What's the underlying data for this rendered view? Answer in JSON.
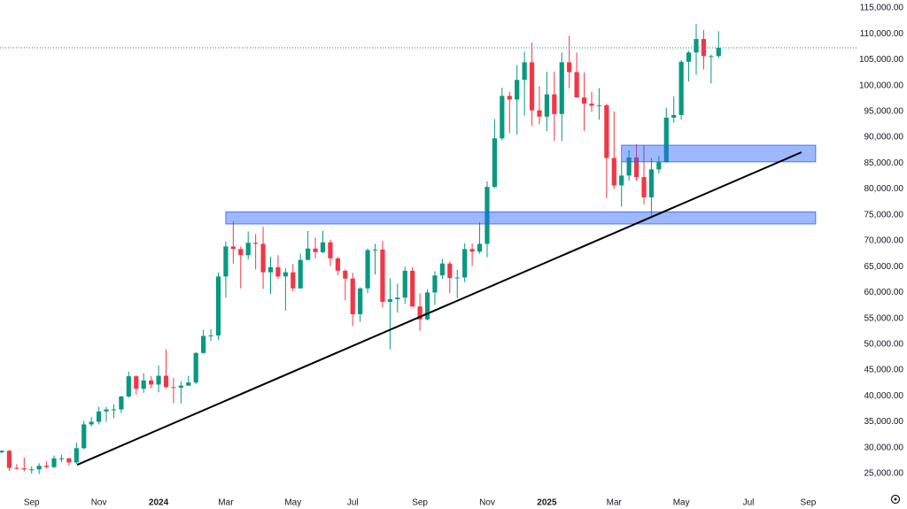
{
  "chart_data": {
    "type": "candlestick",
    "categories": [
      null,
      null,
      null,
      null,
      "Sep",
      null,
      null,
      null,
      null,
      null,
      null,
      null,
      null,
      "Nov",
      null,
      null,
      null,
      null,
      null,
      null,
      null,
      "2024",
      null,
      null,
      null,
      null,
      null,
      null,
      null,
      null,
      "Mar",
      null,
      null,
      null,
      null,
      null,
      null,
      null,
      null,
      "May",
      null,
      null,
      null,
      null,
      null,
      null,
      null,
      "Jul",
      null,
      null,
      null,
      null,
      null,
      null,
      null,
      null,
      "Sep",
      null,
      null,
      null,
      null,
      null,
      null,
      null,
      null,
      "Nov",
      null,
      null,
      null,
      null,
      null,
      null,
      null,
      "2025",
      null,
      null,
      null,
      null,
      null,
      null,
      null,
      null,
      "Mar",
      null,
      null,
      null,
      null,
      null,
      null,
      null,
      null,
      "May",
      null,
      null,
      null,
      null,
      null,
      null,
      null,
      null,
      "Jul",
      null,
      null,
      null,
      null,
      null,
      null,
      null,
      "Sep",
      null,
      null,
      null,
      null,
      null,
      null
    ],
    "open": [
      29100,
      29400,
      26100,
      26000,
      25800,
      25800,
      26500,
      26250,
      27950,
      27950,
      27150,
      29900,
      34500,
      35000,
      37000,
      37400,
      37400,
      39900,
      43800,
      41400,
      43000,
      42200,
      43900,
      41700,
      41600,
      42000,
      42600,
      48300,
      51600,
      51700,
      63100,
      68900,
      68400,
      67200,
      69600,
      69400,
      63900,
      64900,
      63100,
      63900,
      60800,
      66300,
      68500,
      67800,
      69700,
      66600,
      64200,
      62700,
      55800,
      60800,
      68200,
      68300,
      58200,
      58700,
      59000,
      64200,
      57300,
      54800,
      60000,
      63300,
      65600,
      62800,
      62900,
      68400,
      67900,
      69400,
      80400,
      89800,
      98000,
      97300,
      101100,
      104500,
      95200,
      94000,
      98300,
      94500,
      104500,
      102600,
      97700,
      96500,
      96100,
      96200,
      86000,
      80700,
      82600,
      86100,
      82300,
      78400,
      83800,
      85200,
      93800,
      94300,
      104600,
      106400,
      109000,
      105700,
      105700,
      null,
      null,
      null,
      null,
      null,
      null,
      null,
      null,
      null,
      null,
      null,
      null,
      null,
      null,
      null,
      null,
      null,
      null
    ],
    "high": [
      29500,
      29600,
      26800,
      28100,
      26400,
      27000,
      27400,
      28500,
      28600,
      28000,
      31000,
      35200,
      35900,
      37900,
      37900,
      38400,
      40000,
      44700,
      44000,
      44400,
      43800,
      45900,
      49000,
      43500,
      42800,
      43900,
      48500,
      52800,
      52900,
      63900,
      69900,
      73800,
      68900,
      71800,
      71300,
      72700,
      66900,
      67200,
      64700,
      65500,
      67500,
      71900,
      70600,
      71900,
      70200,
      66900,
      64500,
      63800,
      61000,
      68500,
      69400,
      70000,
      62700,
      61700,
      65000,
      64900,
      59800,
      60600,
      64100,
      66500,
      66000,
      64400,
      69500,
      69500,
      73600,
      81500,
      93500,
      99600,
      98800,
      104000,
      106500,
      108300,
      99900,
      102700,
      102700,
      106400,
      109600,
      106400,
      102500,
      98800,
      99500,
      96500,
      95000,
      85300,
      87500,
      88700,
      88500,
      86000,
      86400,
      95700,
      97900,
      104900,
      106700,
      111900,
      110700,
      106000,
      110500,
      null,
      null,
      null,
      null,
      null,
      null,
      null,
      null,
      null,
      null,
      null,
      null,
      null,
      null,
      null,
      null,
      null,
      null
    ],
    "low": [
      28900,
      25500,
      25800,
      25400,
      25000,
      24900,
      26000,
      26000,
      27200,
      26500,
      26800,
      29700,
      34100,
      34500,
      35000,
      35700,
      36700,
      39700,
      40300,
      40600,
      41500,
      40700,
      41500,
      38600,
      38500,
      41900,
      42300,
      48200,
      50600,
      50900,
      59000,
      65600,
      60800,
      66400,
      64500,
      60700,
      59700,
      62600,
      56500,
      60200,
      60700,
      66200,
      66600,
      67600,
      65100,
      63300,
      58500,
      53500,
      54300,
      59900,
      63500,
      57100,
      49000,
      56100,
      57800,
      57200,
      52600,
      54600,
      57600,
      62600,
      59900,
      58900,
      62000,
      65100,
      67500,
      66800,
      80200,
      89400,
      90800,
      90500,
      94200,
      92200,
      92500,
      91200,
      89300,
      89300,
      99500,
      97700,
      91200,
      94900,
      93400,
      78200,
      80000,
      76600,
      81600,
      81600,
      77100,
      74500,
      83000,
      85100,
      92800,
      93400,
      100800,
      102100,
      103100,
      100400,
      105300,
      null,
      null,
      null,
      null,
      null,
      null,
      null,
      null,
      null,
      null,
      null,
      null,
      null,
      null,
      null,
      null,
      null,
      null
    ],
    "close": [
      29400,
      26100,
      26000,
      25800,
      25800,
      26500,
      26250,
      27950,
      27950,
      27150,
      29900,
      34500,
      35000,
      37000,
      37400,
      37400,
      39900,
      43800,
      41400,
      43000,
      42200,
      43900,
      41700,
      41600,
      42000,
      42600,
      48300,
      51600,
      51700,
      63100,
      68900,
      68400,
      67200,
      69600,
      69400,
      63900,
      64900,
      63100,
      63900,
      60800,
      66300,
      68500,
      67800,
      69700,
      66600,
      64200,
      62700,
      55800,
      60800,
      68200,
      68300,
      58200,
      58700,
      59000,
      64200,
      57300,
      54800,
      60000,
      63300,
      65600,
      62800,
      62900,
      68400,
      67900,
      69400,
      80400,
      89800,
      98000,
      97300,
      101100,
      104500,
      95200,
      94000,
      98300,
      94500,
      104500,
      102600,
      97700,
      96500,
      96100,
      96200,
      86000,
      80700,
      82600,
      86100,
      82300,
      78400,
      83800,
      85200,
      93800,
      94300,
      104600,
      106400,
      109000,
      105700,
      105700,
      107300,
      null,
      null,
      null,
      null,
      null,
      null,
      null,
      null,
      null,
      null,
      null,
      null,
      null,
      null,
      null,
      null,
      null,
      null
    ],
    "up_color": "#089981",
    "down_color": "#f23645",
    "ylim": [
      21570,
      116540
    ],
    "yticks": [
      {
        "value": 25000,
        "label": "25,000.00"
      },
      {
        "value": 30000,
        "label": "30,000.00"
      },
      {
        "value": 35000,
        "label": "35,000.00"
      },
      {
        "value": 40000,
        "label": "40,000.00"
      },
      {
        "value": 45000,
        "label": "45,000.00"
      },
      {
        "value": 50000,
        "label": "50,000.00"
      },
      {
        "value": 55000,
        "label": "55,000.00"
      },
      {
        "value": 60000,
        "label": "60,000.00"
      },
      {
        "value": 65000,
        "label": "65,000.00"
      },
      {
        "value": 70000,
        "label": "70,000.00"
      },
      {
        "value": 75000,
        "label": "75,000.00"
      },
      {
        "value": 80000,
        "label": "80,000.00"
      },
      {
        "value": 85000,
        "label": "85,000.00"
      },
      {
        "value": 90000,
        "label": "90,000.00"
      },
      {
        "value": 95000,
        "label": "95,000.00"
      },
      {
        "value": 100000,
        "label": "100,000.00"
      },
      {
        "value": 105000,
        "label": "105,000.00"
      },
      {
        "value": 110000,
        "label": "110,000.00"
      },
      {
        "value": 115000,
        "label": "115,000.00"
      }
    ],
    "grid": false,
    "price_line": 107300,
    "zones": [
      {
        "start": 30,
        "end": 109,
        "low": 73250,
        "high": 75600,
        "color": "#2962ff"
      },
      {
        "start": 83,
        "end": 109,
        "low": 85250,
        "high": 88470,
        "color": "#2962ff"
      }
    ],
    "trendline": {
      "x": [
        10.1,
        107.1
      ],
      "y": [
        26700,
        87110
      ],
      "color": "#000000"
    }
  }
}
